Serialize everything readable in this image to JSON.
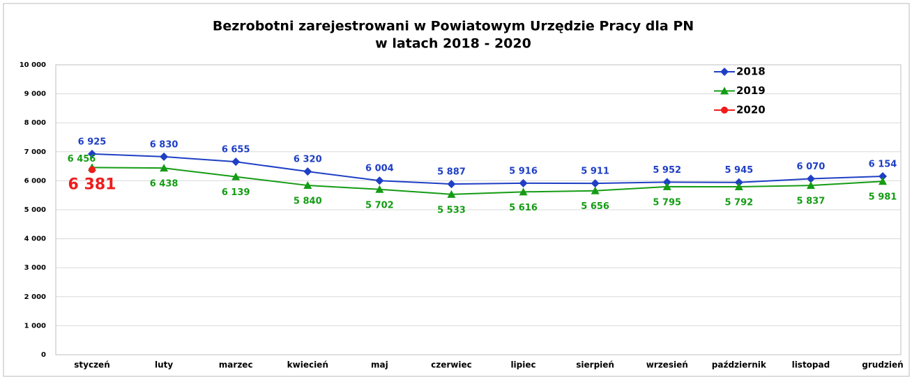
{
  "chart_data": {
    "type": "line",
    "title": "Bezrobotni zarejestrowani w Powiatowym Urzędzie Pracy dla PN",
    "subtitle": "w latach 2018 - 2020",
    "categories": [
      "styczeń",
      "luty",
      "marzec",
      "kwiecień",
      "maj",
      "czerwiec",
      "lipiec",
      "sierpień",
      "wrzesień",
      "październik",
      "listopad",
      "grudzień"
    ],
    "ylim": [
      0,
      10000
    ],
    "yticks": [
      0,
      {
        "value": 1000,
        "label": "1 000"
      },
      {
        "value": 2000,
        "label": "2 000"
      },
      {
        "value": 3000,
        "label": "3 000"
      },
      {
        "value": 4000,
        "label": "4 000"
      },
      {
        "value": 5000,
        "label": "5 000"
      },
      {
        "value": 6000,
        "label": "6 000"
      },
      {
        "value": 7000,
        "label": "7 000"
      },
      {
        "value": 8000,
        "label": "8 000"
      },
      {
        "value": 9000,
        "label": "9 000"
      },
      {
        "value": 10000,
        "label": "10 000"
      }
    ],
    "grid": true,
    "legend": "top-right",
    "series": [
      {
        "name": "2018",
        "color": "#1f3fc4",
        "marker": "diamond",
        "values": [
          6925,
          6830,
          6655,
          6320,
          6004,
          5887,
          5916,
          5911,
          5952,
          5945,
          6070,
          6154
        ],
        "value_labels": [
          "6 925",
          "6 830",
          "6 655",
          "6 320",
          "6 004",
          "5 887",
          "5 916",
          "5 911",
          "5 952",
          "5 945",
          "6 070",
          "6 154"
        ]
      },
      {
        "name": "2019",
        "color": "#149c14",
        "marker": "triangle",
        "values": [
          6456,
          6438,
          6139,
          5840,
          5702,
          5533,
          5616,
          5656,
          5795,
          5792,
          5837,
          5981
        ],
        "value_labels": [
          "6 456",
          "6 438",
          "6 139",
          "5 840",
          "5 702",
          "5 533",
          "5 616",
          "5 656",
          "5 795",
          "5 792",
          "5 837",
          "5 981"
        ]
      },
      {
        "name": "2020",
        "color": "#ee1c1c",
        "marker": "circle",
        "values": [
          6381,
          null,
          null,
          null,
          null,
          null,
          null,
          null,
          null,
          null,
          null,
          null
        ],
        "value_labels": [
          "6 381",
          null,
          null,
          null,
          null,
          null,
          null,
          null,
          null,
          null,
          null,
          null
        ]
      }
    ]
  }
}
